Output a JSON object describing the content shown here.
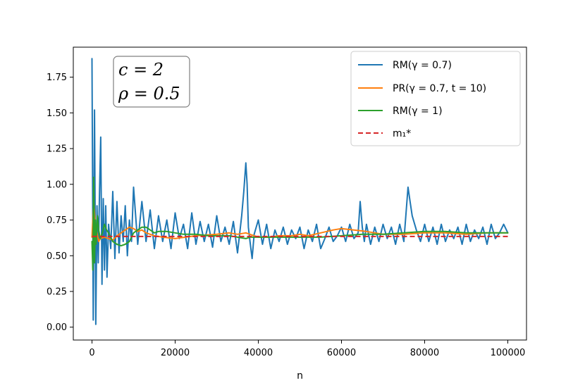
{
  "chart_data": {
    "type": "line",
    "title": "",
    "xlabel": "n",
    "ylabel": "",
    "xlim": [
      -4500,
      104500
    ],
    "ylim": [
      -0.09,
      1.96
    ],
    "xticks": [
      0,
      20000,
      40000,
      60000,
      80000,
      100000
    ],
    "xtick_labels": [
      "0",
      "20000",
      "40000",
      "60000",
      "80000",
      "100000"
    ],
    "yticks": [
      0.0,
      0.25,
      0.5,
      0.75,
      1.0,
      1.25,
      1.5,
      1.75
    ],
    "ytick_labels": [
      "0.00",
      "0.25",
      "0.50",
      "0.75",
      "1.00",
      "1.25",
      "1.50",
      "1.75"
    ],
    "grid": false,
    "legend_position": "top-right",
    "annotation": {
      "line1": "c = 2",
      "line2": "ρ = 0.5"
    },
    "series": [
      {
        "name": "RM(γ = 0.7)",
        "color": "#1f77b4",
        "style": "solid",
        "x": [
          0,
          300,
          600,
          900,
          1200,
          1500,
          1800,
          2100,
          2400,
          2700,
          3000,
          3300,
          3600,
          4000,
          4500,
          5000,
          5500,
          6000,
          6500,
          7000,
          7500,
          8000,
          8500,
          9000,
          9500,
          10000,
          11000,
          12000,
          13000,
          14000,
          15000,
          16000,
          17000,
          18000,
          19000,
          20000,
          21000,
          22000,
          23000,
          24000,
          25000,
          26000,
          27000,
          28000,
          29000,
          30000,
          31000,
          32000,
          33000,
          34000,
          35000,
          36000,
          36500,
          37000,
          37300,
          37600,
          38000,
          38500,
          39000,
          40000,
          41000,
          42000,
          43000,
          44000,
          45000,
          46000,
          47000,
          48000,
          49000,
          50000,
          51000,
          52000,
          53000,
          54000,
          55000,
          56000,
          57000,
          58000,
          59000,
          60000,
          61000,
          62000,
          63000,
          64000,
          64500,
          65000,
          65500,
          66000,
          67000,
          68000,
          69000,
          70000,
          71000,
          72000,
          73000,
          74000,
          75000,
          76000,
          76500,
          77000,
          78000,
          79000,
          80000,
          81000,
          82000,
          83000,
          84000,
          85000,
          86000,
          87000,
          88000,
          89000,
          90000,
          91000,
          92000,
          93000,
          94000,
          95000,
          96000,
          97000,
          98000,
          99000,
          100000
        ],
        "y": [
          1.88,
          0.05,
          1.52,
          0.02,
          0.85,
          0.45,
          0.95,
          1.33,
          0.3,
          0.9,
          0.4,
          0.85,
          0.35,
          0.72,
          0.55,
          0.95,
          0.48,
          0.88,
          0.52,
          0.78,
          0.6,
          0.85,
          0.5,
          0.75,
          0.6,
          0.98,
          0.58,
          0.88,
          0.6,
          0.82,
          0.55,
          0.78,
          0.6,
          0.75,
          0.55,
          0.8,
          0.62,
          0.72,
          0.55,
          0.8,
          0.58,
          0.74,
          0.6,
          0.72,
          0.56,
          0.78,
          0.6,
          0.7,
          0.58,
          0.74,
          0.52,
          0.78,
          0.95,
          1.15,
          1.0,
          0.7,
          0.6,
          0.48,
          0.65,
          0.75,
          0.58,
          0.72,
          0.55,
          0.68,
          0.6,
          0.7,
          0.58,
          0.68,
          0.62,
          0.7,
          0.55,
          0.68,
          0.6,
          0.72,
          0.55,
          0.62,
          0.7,
          0.6,
          0.64,
          0.7,
          0.6,
          0.72,
          0.62,
          0.66,
          0.88,
          0.7,
          0.6,
          0.72,
          0.58,
          0.7,
          0.6,
          0.72,
          0.62,
          0.7,
          0.58,
          0.72,
          0.6,
          0.98,
          0.88,
          0.78,
          0.68,
          0.6,
          0.72,
          0.6,
          0.7,
          0.58,
          0.72,
          0.6,
          0.68,
          0.62,
          0.7,
          0.58,
          0.72,
          0.6,
          0.68,
          0.62,
          0.7,
          0.58,
          0.72,
          0.62,
          0.66,
          0.72,
          0.66
        ]
      },
      {
        "name": "PR(γ = 0.7, t = 10)",
        "color": "#ff7f0e",
        "style": "solid",
        "x": [
          0,
          400,
          800,
          1200,
          1600,
          2000,
          3000,
          4000,
          5000,
          6000,
          7000,
          8000,
          9000,
          10000,
          11000,
          12000,
          13000,
          14000,
          15000,
          17000,
          20000,
          25000,
          30000,
          33000,
          35000,
          37000,
          39000,
          40000,
          43000,
          45000,
          48000,
          50000,
          52000,
          55000,
          58000,
          60000,
          63000,
          66000,
          70000,
          75000,
          80000,
          85000,
          90000,
          95000,
          100000
        ],
        "y": [
          0.63,
          0.88,
          0.72,
          0.66,
          0.6,
          0.62,
          0.63,
          0.62,
          0.61,
          0.64,
          0.66,
          0.68,
          0.7,
          0.69,
          0.67,
          0.68,
          0.66,
          0.65,
          0.64,
          0.63,
          0.62,
          0.64,
          0.65,
          0.66,
          0.65,
          0.66,
          0.64,
          0.63,
          0.63,
          0.64,
          0.64,
          0.65,
          0.64,
          0.66,
          0.68,
          0.69,
          0.68,
          0.67,
          0.65,
          0.65,
          0.66,
          0.66,
          0.65,
          0.66,
          0.66
        ]
      },
      {
        "name": "RM(γ = 1)",
        "color": "#2ca02c",
        "style": "solid",
        "x": [
          0,
          200,
          400,
          600,
          800,
          1000,
          1300,
          1600,
          2000,
          2500,
          3000,
          3500,
          4000,
          5000,
          6000,
          7000,
          8000,
          9000,
          10000,
          11000,
          12000,
          13000,
          14000,
          15000,
          16000,
          18000,
          20000,
          22000,
          25000,
          28000,
          30000,
          33000,
          35000,
          37000,
          38000,
          40000,
          42000,
          45000,
          50000,
          55000,
          60000,
          65000,
          70000,
          75000,
          80000,
          85000,
          90000,
          95000,
          100000
        ],
        "y": [
          0.6,
          0.4,
          1.05,
          0.45,
          0.75,
          0.58,
          0.78,
          0.68,
          0.62,
          0.66,
          0.72,
          0.68,
          0.66,
          0.6,
          0.58,
          0.57,
          0.58,
          0.6,
          0.66,
          0.68,
          0.7,
          0.7,
          0.68,
          0.66,
          0.67,
          0.67,
          0.66,
          0.65,
          0.65,
          0.64,
          0.64,
          0.64,
          0.63,
          0.62,
          0.63,
          0.63,
          0.63,
          0.63,
          0.63,
          0.63,
          0.64,
          0.65,
          0.65,
          0.66,
          0.67,
          0.67,
          0.66,
          0.66,
          0.66
        ]
      },
      {
        "name": "m₁*",
        "color": "#d62728",
        "style": "dashed",
        "x": [
          0,
          100000
        ],
        "y": [
          0.635,
          0.635
        ]
      }
    ]
  }
}
